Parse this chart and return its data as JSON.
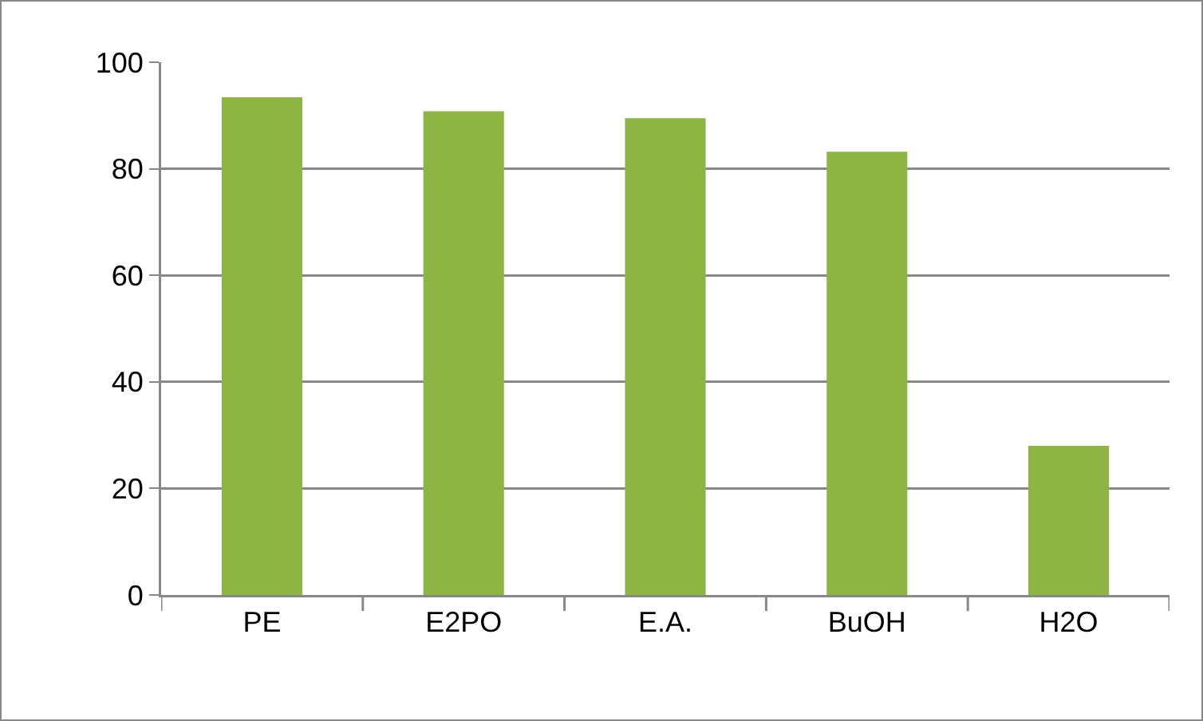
{
  "chart_data": {
    "type": "bar",
    "categories": [
      "PE",
      "E2PO",
      "E.A.",
      "BuOH",
      "H2O"
    ],
    "values": [
      93.4,
      90.8,
      89.5,
      83.2,
      28
    ],
    "color": "#8db543",
    "ylim": [
      0,
      100
    ],
    "yticks": [
      0,
      20,
      40,
      60,
      80,
      100
    ],
    "grid": "y"
  }
}
